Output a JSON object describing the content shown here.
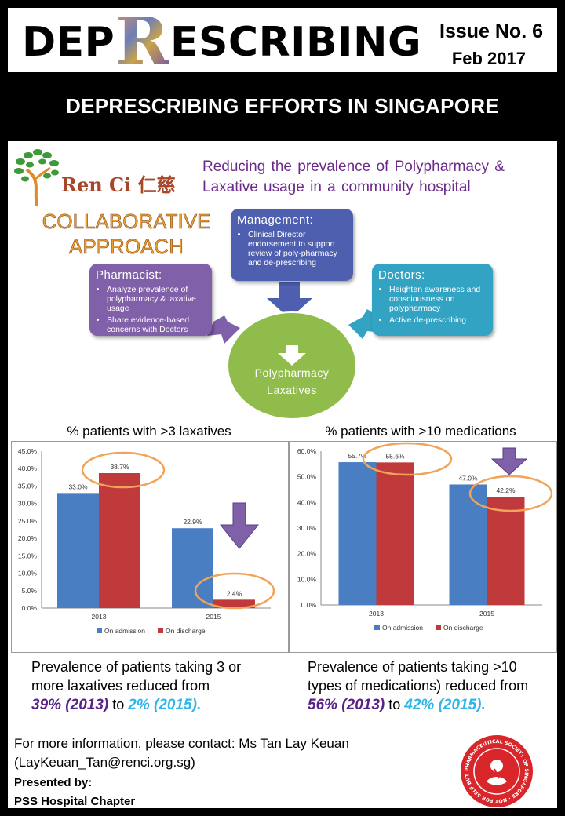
{
  "header": {
    "title_pre": "DEP",
    "title_r": "R",
    "title_post": "ESCRIBING",
    "issue": "Issue No. 6",
    "date": "Feb 2017"
  },
  "banner": "DEPRESCRIBING EFFORTS IN SINGAPORE",
  "org": {
    "logo_text": "Ren Ci 仁慈",
    "logo_icon": "tree-logo-icon"
  },
  "subtitle_line1": "Reducing the prevalence of Polypharmacy &",
  "subtitle_line2": "Laxative usage in a community hospital",
  "approach_line1": "COLLABORATIVE",
  "approach_line2": "APPROACH",
  "boxes": {
    "management": {
      "title": "Management:",
      "items": [
        "Clinical Director endorsement to support review of poly-pharmacy and de-prescribing"
      ],
      "color": "#4f5fb0"
    },
    "pharmacist": {
      "title": "Pharmacist:",
      "items": [
        "Analyze prevalence of polypharmacy & laxative usage",
        "Share evidence-based concerns with Doctors"
      ],
      "color": "#8060a8"
    },
    "doctors": {
      "title": "Doctors:",
      "items": [
        "Heighten awareness and consciousness on polypharmacy",
        "Active de-prescribing"
      ],
      "color": "#33a3c4"
    }
  },
  "center": {
    "line1": "Polypharmacy",
    "line2": "Laxatives",
    "color": "#8fbc4a"
  },
  "charts": {
    "left_title": "% patients with >3 laxatives",
    "right_title": "% patients with >10 medications"
  },
  "chart_data": [
    {
      "type": "bar",
      "categories": [
        "2013",
        "2015"
      ],
      "series": [
        {
          "name": "On admission",
          "values": [
            33.0,
            22.9
          ],
          "color": "#4a7ec2"
        },
        {
          "name": "On discharge",
          "values": [
            38.7,
            2.4
          ],
          "color": "#c0393b"
        }
      ],
      "ylim": [
        0,
        45
      ],
      "yticks": [
        "0.0%",
        "5.0%",
        "10.0%",
        "15.0%",
        "20.0%",
        "25.0%",
        "30.0%",
        "35.0%",
        "40.0%",
        "45.0%"
      ],
      "data_labels": [
        [
          "33.0%",
          "22.9%"
        ],
        [
          "38.7%",
          "2.4%"
        ]
      ],
      "legend": "bottom"
    },
    {
      "type": "bar",
      "categories": [
        "2013",
        "2015"
      ],
      "series": [
        {
          "name": "On admission",
          "values": [
            55.7,
            47.0
          ],
          "color": "#4a7ec2"
        },
        {
          "name": "On discharge",
          "values": [
            55.6,
            42.2
          ],
          "color": "#c0393b"
        }
      ],
      "ylim": [
        0,
        60
      ],
      "yticks": [
        "0.0%",
        "10.0%",
        "20.0%",
        "30.0%",
        "40.0%",
        "50.0%",
        "60.0%"
      ],
      "data_labels": [
        [
          "55.7%",
          "47.0%"
        ],
        [
          "55.6%",
          "42.2%"
        ]
      ],
      "legend": "bottom"
    }
  ],
  "results": {
    "left": {
      "line1": "Prevalence of patients taking 3 or",
      "line2": "more laxatives reduced from",
      "from": "39% (2013)",
      "to_word": "to",
      "to": "2% (2015)."
    },
    "right": {
      "line1": "Prevalence of patients taking >10",
      "line2": "types of medications) reduced from",
      "from": "56% (2013)",
      "to_word": "to",
      "to": "42% (2015)."
    }
  },
  "contact_line1": "For more information,  please contact: Ms Tan Lay Keuan",
  "contact_line2": "(LayKeuan_Tan@renci.org.sg)",
  "presented_line1": "Presented by:",
  "presented_line2": "PSS Hospital Chapter",
  "seal": {
    "text": "PHARMACEUTICAL SOCIETY OF SINGAPORE · NOT FOR SELF BUT FOR ALL ·",
    "color": "#d9262b"
  }
}
